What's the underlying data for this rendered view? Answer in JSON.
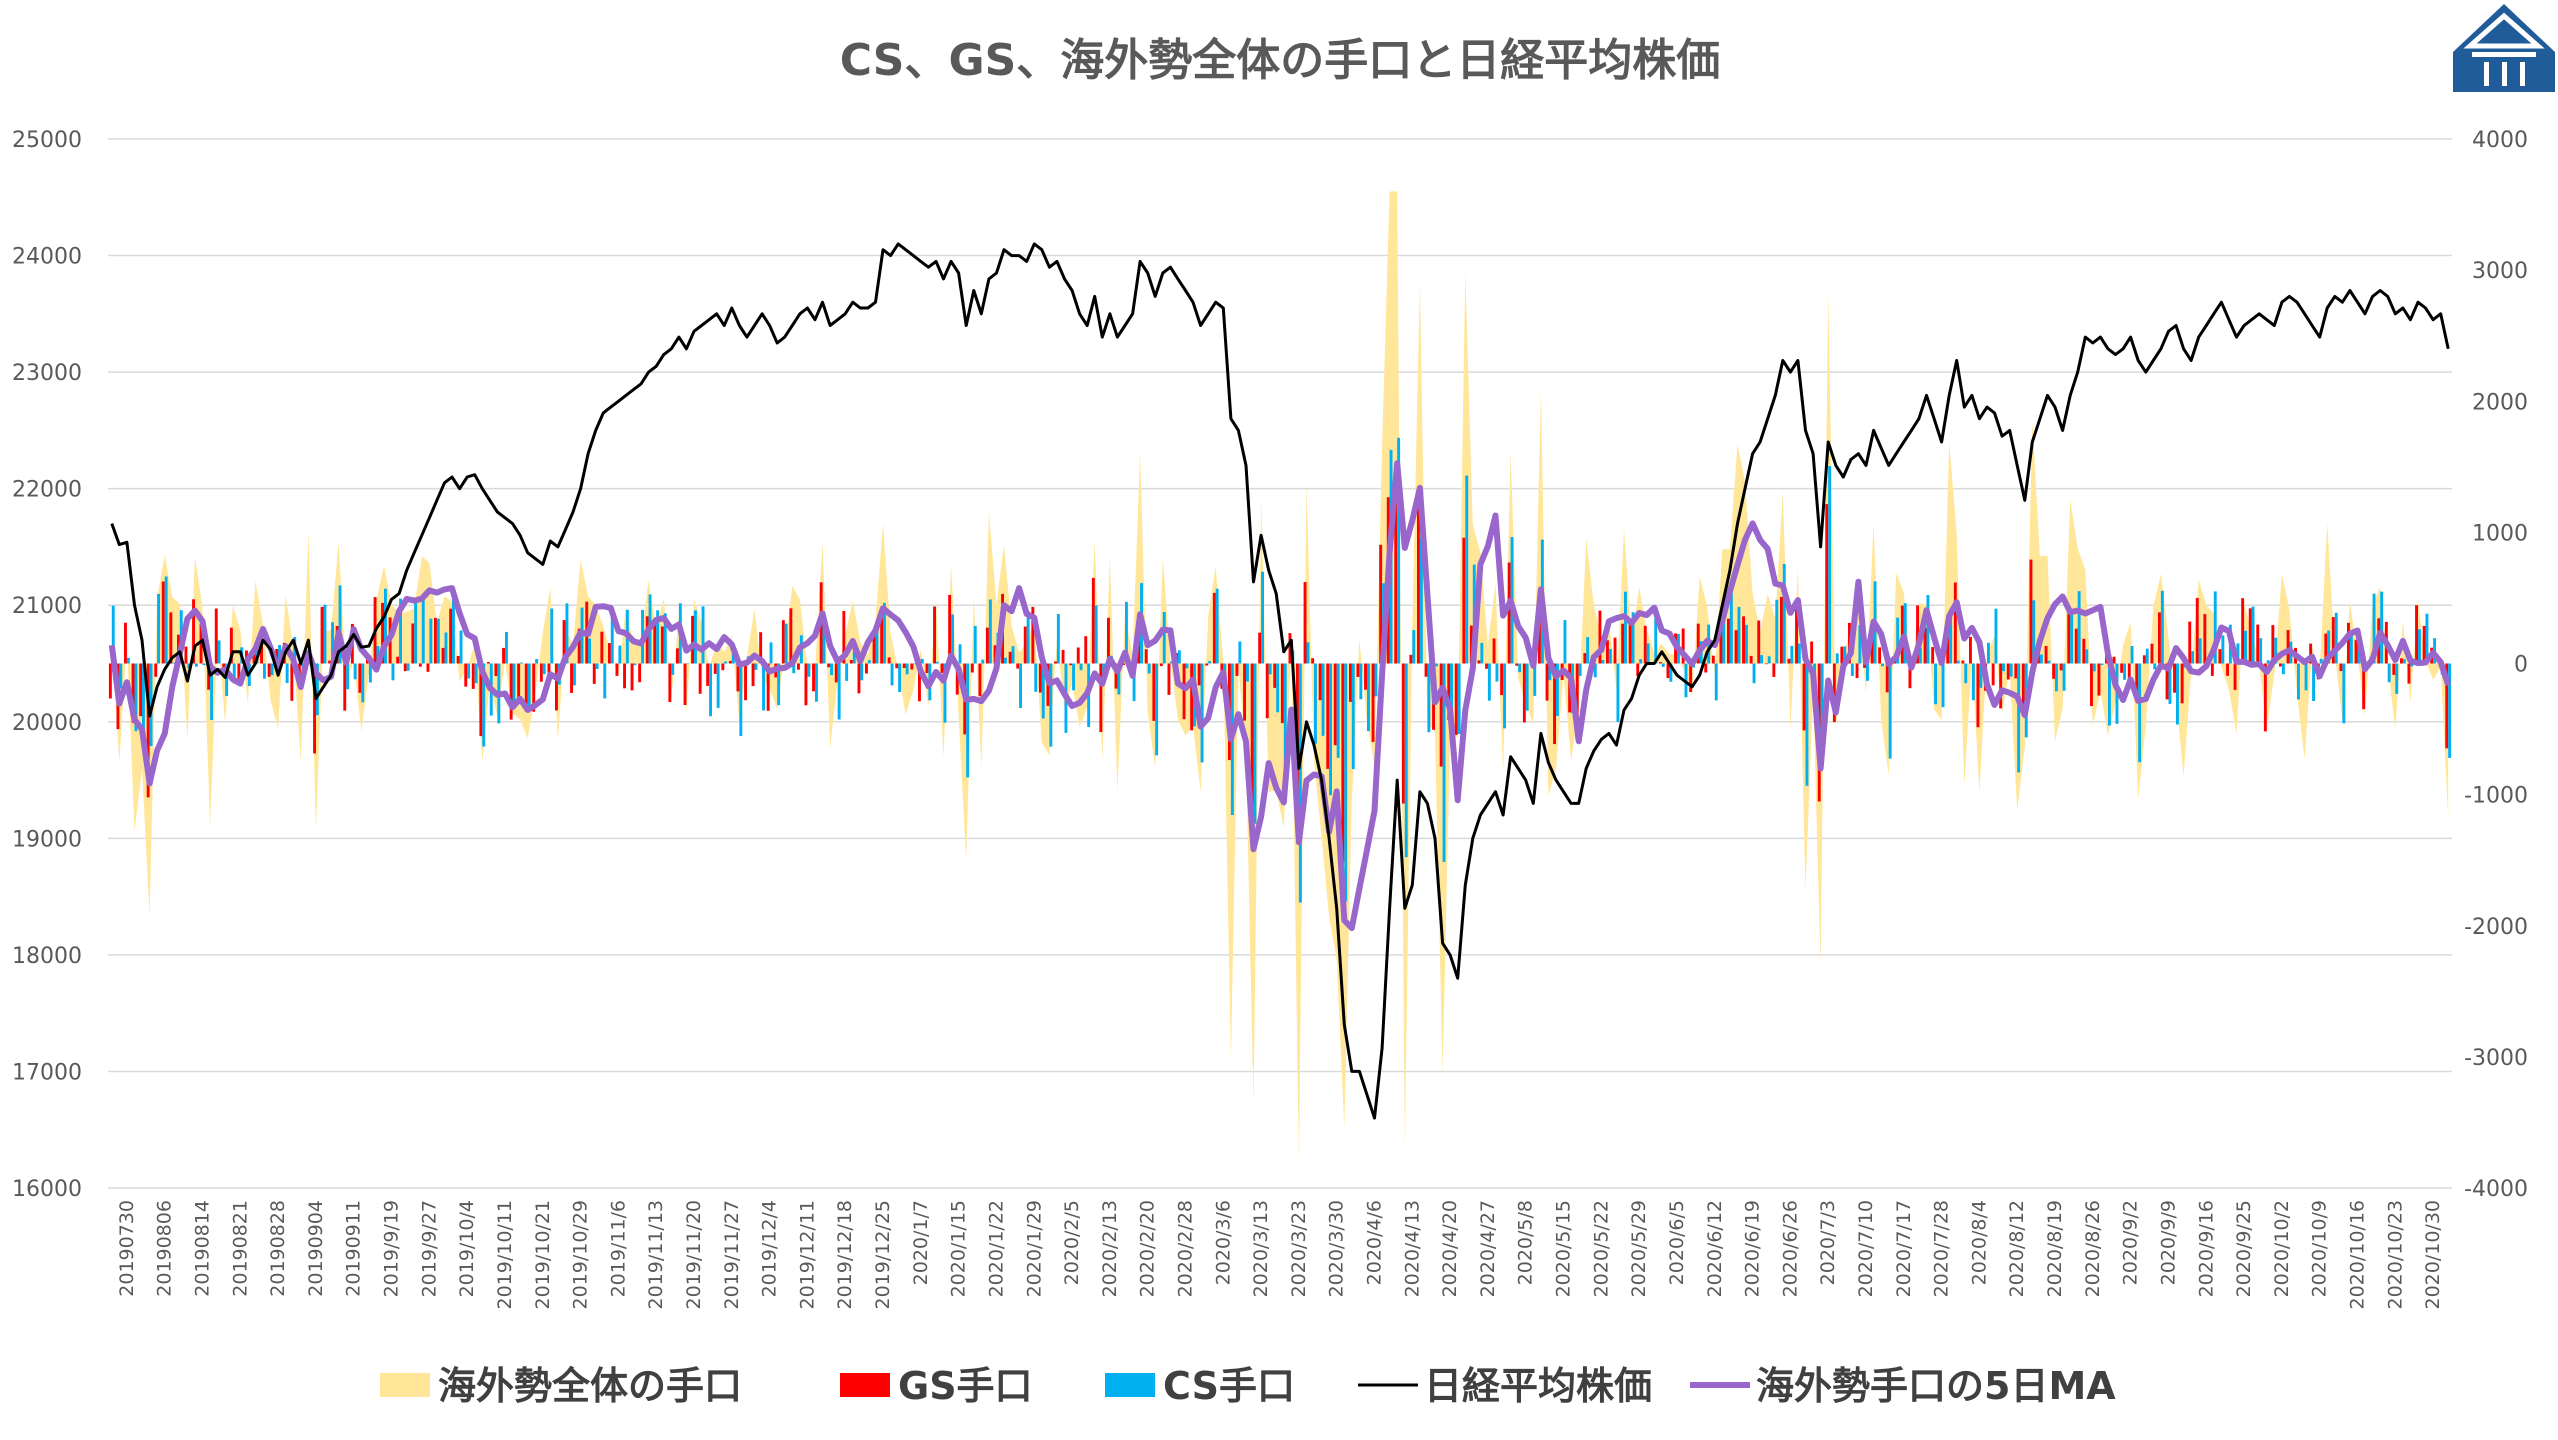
{
  "chart_data": {
    "type": "bar",
    "title": "CS、GS、海外勢全体の手口と日経平均株価",
    "left_axis": {
      "range": [
        16000,
        25000
      ],
      "ticks": [
        "16000",
        "17000",
        "18000",
        "19000",
        "20000",
        "21000",
        "22000",
        "23000",
        "24000",
        "25000"
      ]
    },
    "right_axis": {
      "range": [
        -4000,
        4000
      ],
      "ticks": [
        "-4000",
        "-3000",
        "-2000",
        "-1000",
        "0",
        "1000",
        "2000",
        "3000",
        "4000"
      ]
    },
    "grid": true,
    "legend_position": "bottom",
    "x_tick_labels": [
      "20190730",
      "20190806",
      "20190814",
      "20190821",
      "20190828",
      "20190904",
      "20190911",
      "2019/9/19",
      "2019/9/27",
      "2019/10/4",
      "2019/10/11",
      "2019/10/21",
      "2019/10/29",
      "2019/11/6",
      "2019/11/13",
      "2019/11/20",
      "2019/11/27",
      "2019/12/4",
      "2019/12/11",
      "2019/12/18",
      "2019/12/25",
      "2020/1/7",
      "2020/1/15",
      "2020/1/22",
      "2020/1/29",
      "2020/2/5",
      "2020/2/13",
      "2020/2/20",
      "2020/2/28",
      "2020/3/6",
      "2020/3/13",
      "2020/3/23",
      "2020/3/30",
      "2020/4/6",
      "2020/4/13",
      "2020/4/20",
      "2020/4/27",
      "2020/5/8",
      "2020/5/15",
      "2020/5/22",
      "2020/5/29",
      "2020/6/5",
      "2020/6/12",
      "2020/6/19",
      "2020/6/26",
      "2020/7/3",
      "2020/7/10",
      "2020/7/17",
      "2020/7/28",
      "2020/8/4",
      "2020/8/12",
      "2020/8/19",
      "2020/8/26",
      "2020/9/2",
      "2020/9/9",
      "2020/9/16",
      "2020/9/25",
      "2020/10/2",
      "2020/10/9",
      "2020/10/16",
      "2020/10/23",
      "2020/10/30"
    ],
    "series": [
      {
        "name": "海外勢全体の手口",
        "type": "area",
        "axis": "right",
        "color": "#FFE699"
      },
      {
        "name": "GS手口",
        "type": "bar",
        "axis": "right",
        "color": "#FF0000"
      },
      {
        "name": "CS手口",
        "type": "bar",
        "axis": "right",
        "color": "#00B0F0"
      },
      {
        "name": "日経平均株価",
        "type": "line",
        "axis": "left",
        "color": "#000000",
        "values": [
          21700,
          21520,
          21540,
          21000,
          20700,
          20050,
          20300,
          20450,
          20550,
          20600,
          20350,
          20650,
          20700,
          20400,
          20450,
          20380,
          20600,
          20600,
          20400,
          20500,
          20700,
          20620,
          20400,
          20600,
          20700,
          20500,
          20700,
          20200,
          20300,
          20400,
          20600,
          20650,
          20750,
          20640,
          20650,
          20800,
          20900,
          21050,
          21100,
          21300,
          21450,
          21600,
          21750,
          21900,
          22050,
          22100,
          22000,
          22100,
          22120,
          22000,
          21900,
          21800,
          21750,
          21700,
          21600,
          21450,
          21400,
          21350,
          21550,
          21500,
          21650,
          21800,
          22000,
          22300,
          22500,
          22650,
          22700,
          22750,
          22800,
          22850,
          22900,
          23000,
          23050,
          23150,
          23200,
          23300,
          23200,
          23350,
          23400,
          23450,
          23500,
          23400,
          23550,
          23400,
          23300,
          23400,
          23500,
          23400,
          23250,
          23300,
          23400,
          23500,
          23550,
          23450,
          23600,
          23400,
          23450,
          23500,
          23600,
          23550,
          23550,
          23600,
          24050,
          24000,
          24100,
          24050,
          24000,
          23950,
          23900,
          23950,
          23800,
          23950,
          23850,
          23400,
          23700,
          23500,
          23800,
          23850,
          24050,
          24000,
          24000,
          23950,
          24100,
          24050,
          23900,
          23950,
          23800,
          23700,
          23500,
          23400,
          23650,
          23300,
          23500,
          23300,
          23400,
          23500,
          23950,
          23850,
          23650,
          23850,
          23900,
          23800,
          23700,
          23600,
          23400,
          23500,
          23600,
          23550,
          22600,
          22500,
          22200,
          21200,
          21600,
          21300,
          21100,
          20600,
          20700,
          19600,
          20000,
          19800,
          19500,
          19000,
          18400,
          17400,
          17000,
          17000,
          16800,
          16600,
          17200,
          18400,
          19500,
          18400,
          18600,
          19400,
          19300,
          19000,
          18100,
          18000,
          17800,
          18600,
          19000,
          19200,
          19300,
          19400,
          19200,
          19700,
          19600,
          19500,
          19300,
          19900,
          19650,
          19500,
          19400,
          19300,
          19300,
          19600,
          19750,
          19850,
          19900,
          19800,
          20100,
          20200,
          20400,
          20500,
          20500,
          20600,
          20500,
          20400,
          20350,
          20300,
          20400,
          20600,
          20700,
          21000,
          21300,
          21700,
          22000,
          22300,
          22400,
          22600,
          22800,
          23100,
          23000,
          23100,
          22500,
          22300,
          21500,
          22400,
          22200,
          22100,
          22250,
          22300,
          22200,
          22500,
          22350,
          22200,
          22300,
          22400,
          22500,
          22600,
          22800,
          22600,
          22400,
          22800,
          23100,
          22700,
          22800,
          22600,
          22700,
          22650,
          22450,
          22500,
          22200,
          21900,
          22400,
          22600,
          22800,
          22700,
          22500,
          22800,
          23000,
          23300,
          23250,
          23300,
          23200,
          23150,
          23200,
          23300,
          23100,
          23000,
          23100,
          23200,
          23350,
          23400,
          23200,
          23100,
          23300,
          23400,
          23500,
          23600,
          23450,
          23300,
          23400,
          23450,
          23500,
          23450,
          23400,
          23600,
          23650,
          23600,
          23500,
          23400,
          23300,
          23550,
          23650,
          23600,
          23700,
          23600,
          23500,
          23650,
          23700,
          23650,
          23500,
          23550,
          23450,
          23600,
          23550,
          23450,
          23500,
          23200
        ]
      },
      {
        "name": "海外勢手口の5日MA",
        "type": "line",
        "axis": "right",
        "color": "#9966CC"
      }
    ]
  }
}
